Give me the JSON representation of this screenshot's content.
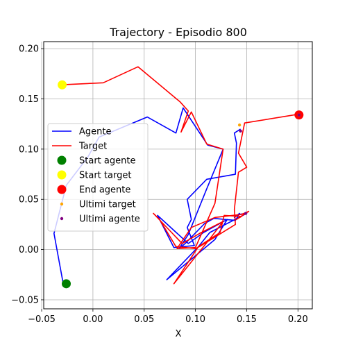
{
  "chart_data": {
    "type": "line",
    "title": "Trajectory - Episodio 800",
    "xlabel": "X",
    "ylabel": "",
    "xlim": [
      -0.048,
      0.214
    ],
    "ylim": [
      -0.059,
      0.207
    ],
    "xticks": [
      -0.05,
      0.0,
      0.05,
      0.1,
      0.15,
      0.2
    ],
    "xtick_labels": [
      "−0.05",
      "0.00",
      "0.05",
      "0.10",
      "0.15",
      "0.20"
    ],
    "yticks": [
      -0.05,
      0.0,
      0.05,
      0.1,
      0.15,
      0.2
    ],
    "ytick_labels": [
      "−0.05",
      "0.00",
      "0.05",
      "0.10",
      "0.15",
      "0.20"
    ],
    "grid": true,
    "legend_position": "center-left",
    "series": [
      {
        "name": "Agente",
        "kind": "line",
        "color": "#0000ff",
        "x": [
          -0.029,
          -0.038,
          -0.026,
          -0.005,
          0.006,
          0.053,
          0.081,
          0.088,
          0.112,
          0.127,
          0.11,
          0.093,
          0.084,
          0.09,
          0.109,
          0.118,
          0.139,
          0.143,
          0.138,
          0.142,
          0.15,
          0.114,
          0.103,
          0.072,
          0.119,
          0.131,
          0.108,
          0.093,
          0.063,
          0.079,
          0.099,
          0.092,
          0.096,
          0.092,
          0.111,
          0.139,
          0.14,
          0.138,
          0.144
        ],
        "y": [
          -0.034,
          0.016,
          0.064,
          0.092,
          0.112,
          0.132,
          0.116,
          0.141,
          0.104,
          0.1,
          0.058,
          0.015,
          0.001,
          0.006,
          0.026,
          0.031,
          0.029,
          0.036,
          0.032,
          0.035,
          0.036,
          0.017,
          0.003,
          -0.03,
          0.01,
          0.03,
          0.017,
          0.006,
          0.034,
          0.002,
          0.004,
          0.022,
          0.03,
          0.05,
          0.07,
          0.075,
          0.106,
          0.116,
          0.12
        ]
      },
      {
        "name": "Target",
        "kind": "line",
        "color": "#ff0000",
        "x": [
          -0.031,
          0.01,
          0.044,
          0.085,
          0.093,
          0.086,
          0.096,
          0.111,
          0.127,
          0.119,
          0.1,
          0.082,
          0.096,
          0.119,
          0.145,
          0.152,
          0.14,
          0.145,
          0.128,
          0.124,
          0.103,
          0.079,
          0.115,
          0.127,
          0.104,
          0.087,
          0.059,
          0.065,
          0.081,
          0.1,
          0.104,
          0.139,
          0.138,
          0.142,
          0.15,
          0.142,
          0.148,
          0.202
        ],
        "y": [
          0.164,
          0.166,
          0.182,
          0.147,
          0.138,
          0.117,
          0.137,
          0.105,
          0.1,
          0.046,
          0.002,
          0.001,
          0.022,
          0.032,
          0.035,
          0.038,
          0.03,
          0.033,
          0.034,
          0.017,
          0.003,
          -0.034,
          0.012,
          0.028,
          0.016,
          0.006,
          0.036,
          0.03,
          0.003,
          0.001,
          0.003,
          0.025,
          0.04,
          0.077,
          0.082,
          0.096,
          0.126,
          0.135
        ]
      },
      {
        "name": "Start agente",
        "kind": "marker",
        "color": "#008000",
        "x": [
          -0.026
        ],
        "y": [
          -0.034
        ]
      },
      {
        "name": "Start target",
        "kind": "marker",
        "color": "#ffff00",
        "x": [
          -0.03
        ],
        "y": [
          0.164
        ]
      },
      {
        "name": "End agente",
        "kind": "marker",
        "color": "#ff0000",
        "x": [
          0.201
        ],
        "y": [
          0.134
        ]
      },
      {
        "name": "Ultimi target",
        "kind": "small-marker",
        "color": "#ffa500",
        "x": [
          0.143,
          0.201
        ],
        "y": [
          0.124,
          0.134
        ]
      },
      {
        "name": "Ultimi agente",
        "kind": "small-marker",
        "color": "#800080",
        "x": [
          0.144,
          0.149,
          0.201
        ],
        "y": [
          0.118,
          0.036,
          0.134
        ]
      }
    ]
  }
}
